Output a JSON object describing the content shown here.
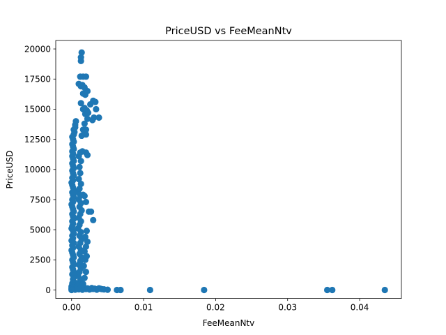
{
  "chart_data": {
    "type": "scatter",
    "title": "PriceUSD vs FeeMeanNtv",
    "xlabel": "FeeMeanNtv",
    "ylabel": "PriceUSD",
    "xlim": [
      -0.0022,
      0.0458
    ],
    "ylim": [
      -700,
      20700
    ],
    "xticks": [
      0.0,
      0.01,
      0.02,
      0.03,
      0.04
    ],
    "xtick_labels": [
      "0.00",
      "0.01",
      "0.02",
      "0.03",
      "0.04"
    ],
    "yticks": [
      0,
      2500,
      5000,
      7500,
      10000,
      12500,
      15000,
      17500,
      20000
    ],
    "ytick_labels": [
      "0",
      "2500",
      "5000",
      "7500",
      "10000",
      "12500",
      "15000",
      "17500",
      "20000"
    ],
    "grid": false,
    "marker_color": "#1f77b4",
    "points": [
      [
        0.0,
        0
      ],
      [
        0.0,
        50
      ],
      [
        0.0,
        120
      ],
      [
        0.0,
        200
      ],
      [
        0.0,
        300
      ],
      [
        0.0002,
        400
      ],
      [
        0.0001,
        550
      ],
      [
        0.0003,
        700
      ],
      [
        0.0002,
        900
      ],
      [
        0.0004,
        1100
      ],
      [
        0.0001,
        1300
      ],
      [
        0.0003,
        1500
      ],
      [
        0.0002,
        1700
      ],
      [
        0.0001,
        1900
      ],
      [
        0.0003,
        2100
      ],
      [
        0.0002,
        2300
      ],
      [
        0.0001,
        2500
      ],
      [
        0.0003,
        2700
      ],
      [
        0.0002,
        2900
      ],
      [
        0.0001,
        3100
      ],
      [
        0.0,
        3300
      ],
      [
        0.0002,
        3500
      ],
      [
        0.0001,
        3700
      ],
      [
        0.0003,
        3900
      ],
      [
        0.0,
        4100
      ],
      [
        0.0002,
        4300
      ],
      [
        0.0001,
        4500
      ],
      [
        0.0003,
        4700
      ],
      [
        0.0002,
        4900
      ],
      [
        0.0,
        5100
      ],
      [
        0.0001,
        5300
      ],
      [
        0.0002,
        5500
      ],
      [
        0.0001,
        5700
      ],
      [
        0.0003,
        5900
      ],
      [
        0.0002,
        6100
      ],
      [
        0.0001,
        6300
      ],
      [
        0.0003,
        6500
      ],
      [
        0.0002,
        6700
      ],
      [
        0.0001,
        6900
      ],
      [
        0.0,
        7100
      ],
      [
        0.0002,
        7300
      ],
      [
        0.0001,
        7500
      ],
      [
        0.0003,
        7700
      ],
      [
        0.0002,
        7900
      ],
      [
        0.0001,
        8100
      ],
      [
        0.0003,
        8300
      ],
      [
        0.0002,
        8500
      ],
      [
        0.0001,
        8700
      ],
      [
        0.0,
        8900
      ],
      [
        0.0002,
        9100
      ],
      [
        0.0001,
        9300
      ],
      [
        0.0003,
        9500
      ],
      [
        0.0002,
        9700
      ],
      [
        0.0001,
        9900
      ],
      [
        0.0003,
        10100
      ],
      [
        0.0002,
        10300
      ],
      [
        0.0001,
        10500
      ],
      [
        0.0003,
        10700
      ],
      [
        0.0002,
        10900
      ],
      [
        0.0001,
        11100
      ],
      [
        0.0002,
        11300
      ],
      [
        0.0001,
        11500
      ],
      [
        0.0003,
        11700
      ],
      [
        0.0002,
        11900
      ],
      [
        0.0001,
        12100
      ],
      [
        0.0003,
        12300
      ],
      [
        0.0002,
        12500
      ],
      [
        0.0001,
        12700
      ],
      [
        0.0003,
        12900
      ],
      [
        0.0004,
        13100
      ],
      [
        0.0003,
        13300
      ],
      [
        0.0005,
        13700
      ],
      [
        0.0006,
        14000
      ],
      [
        0.0005,
        13500
      ],
      [
        0.0008,
        300
      ],
      [
        0.001,
        600
      ],
      [
        0.0012,
        900
      ],
      [
        0.0009,
        1200
      ],
      [
        0.0011,
        1500
      ],
      [
        0.0013,
        1800
      ],
      [
        0.001,
        2100
      ],
      [
        0.0012,
        2400
      ],
      [
        0.0014,
        2700
      ],
      [
        0.0011,
        3000
      ],
      [
        0.0013,
        3300
      ],
      [
        0.001,
        3600
      ],
      [
        0.0012,
        3900
      ],
      [
        0.0014,
        4200
      ],
      [
        0.0011,
        4500
      ],
      [
        0.0013,
        4800
      ],
      [
        0.0009,
        5100
      ],
      [
        0.0011,
        5400
      ],
      [
        0.0013,
        5700
      ],
      [
        0.001,
        6000
      ],
      [
        0.0012,
        6300
      ],
      [
        0.0014,
        6600
      ],
      [
        0.0011,
        6900
      ],
      [
        0.0013,
        7200
      ],
      [
        0.001,
        7500
      ],
      [
        0.0012,
        7800
      ],
      [
        0.0009,
        8100
      ],
      [
        0.0011,
        8400
      ],
      [
        0.0013,
        8800
      ],
      [
        0.001,
        9200
      ],
      [
        0.0012,
        9700
      ],
      [
        0.0011,
        10200
      ],
      [
        0.0013,
        10700
      ],
      [
        0.001,
        11100
      ],
      [
        0.0012,
        11400
      ],
      [
        0.0016,
        500
      ],
      [
        0.0018,
        1000
      ],
      [
        0.002,
        1500
      ],
      [
        0.0017,
        2000
      ],
      [
        0.0019,
        2500
      ],
      [
        0.0021,
        2800
      ],
      [
        0.0018,
        3200
      ],
      [
        0.002,
        3600
      ],
      [
        0.0022,
        4000
      ],
      [
        0.0019,
        4400
      ],
      [
        0.0021,
        4900
      ],
      [
        0.0024,
        6500
      ],
      [
        0.0027,
        6500
      ],
      [
        0.002,
        7300
      ],
      [
        0.0018,
        7800
      ],
      [
        0.0016,
        7900
      ],
      [
        0.002,
        11400
      ],
      [
        0.0022,
        11200
      ],
      [
        0.003,
        5800
      ],
      [
        0.0015,
        11500
      ],
      [
        0.0014,
        12800
      ],
      [
        0.0016,
        13300
      ],
      [
        0.0018,
        13800
      ],
      [
        0.002,
        13300
      ],
      [
        0.0022,
        14200
      ],
      [
        0.0019,
        14600
      ],
      [
        0.0021,
        14900
      ],
      [
        0.0016,
        15000
      ],
      [
        0.0013,
        15500
      ],
      [
        0.0018,
        15100
      ],
      [
        0.0026,
        15400
      ],
      [
        0.003,
        15700
      ],
      [
        0.0033,
        15600
      ],
      [
        0.0034,
        15000
      ],
      [
        0.0031,
        14300
      ],
      [
        0.0038,
        14300
      ],
      [
        0.0029,
        14100
      ],
      [
        0.0023,
        14700
      ],
      [
        0.002,
        12900
      ],
      [
        0.0018,
        13100
      ],
      [
        0.0013,
        16900
      ],
      [
        0.0016,
        16300
      ],
      [
        0.0019,
        16200
      ],
      [
        0.0022,
        16500
      ],
      [
        0.0015,
        17000
      ],
      [
        0.0018,
        16800
      ],
      [
        0.001,
        17100
      ],
      [
        0.0012,
        17700
      ],
      [
        0.0016,
        17700
      ],
      [
        0.002,
        17700
      ],
      [
        0.0013,
        19000
      ],
      [
        0.0013,
        19300
      ],
      [
        0.0014,
        19700
      ],
      [
        0.0005,
        30
      ],
      [
        0.001,
        60
      ],
      [
        0.0015,
        20
      ],
      [
        0.002,
        80
      ],
      [
        0.0025,
        40
      ],
      [
        0.003,
        90
      ],
      [
        0.0035,
        30
      ],
      [
        0.004,
        100
      ],
      [
        0.0045,
        50
      ],
      [
        0.005,
        20
      ],
      [
        0.0008,
        150
      ],
      [
        0.0012,
        120
      ],
      [
        0.0018,
        180
      ],
      [
        0.0022,
        130
      ],
      [
        0.0028,
        160
      ],
      [
        0.0032,
        110
      ],
      [
        0.0038,
        140
      ],
      [
        0.0042,
        70
      ],
      [
        0.0063,
        0
      ],
      [
        0.0068,
        0
      ],
      [
        0.0109,
        0
      ],
      [
        0.0184,
        0
      ],
      [
        0.0355,
        0
      ],
      [
        0.0362,
        0
      ],
      [
        0.0435,
        0
      ]
    ]
  }
}
